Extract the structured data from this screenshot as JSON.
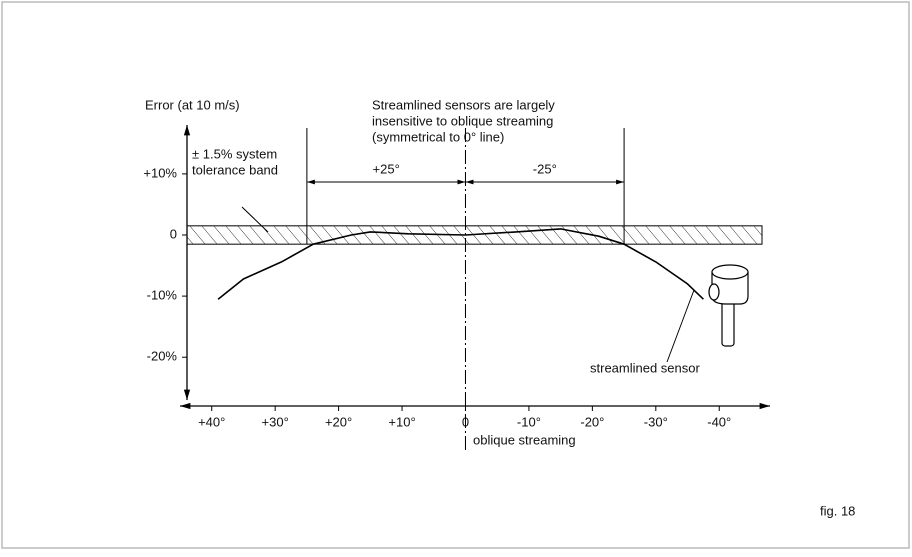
{
  "chart_data": {
    "type": "line",
    "y_label": "Error (at 10 m/s)",
    "x_label": "oblique streaming",
    "annotation": [
      "Streamlined sensors are largely",
      "insensitive to oblique streaming",
      "(symmetrical to 0° line)"
    ],
    "band": {
      "label": [
        "± 1.5% system",
        "tolerance band"
      ],
      "low": -1.5,
      "high": 1.5
    },
    "dimensions": [
      {
        "from": 25,
        "to": 0,
        "label": "+25°"
      },
      {
        "from": 0,
        "to": -25,
        "label": "-25°"
      }
    ],
    "figure_label": "fig. 18",
    "x": [
      39,
      35,
      29,
      24,
      18,
      15,
      9,
      0,
      -8,
      -15,
      -21,
      -25,
      -30,
      -35,
      -37.5
    ],
    "series": [
      {
        "name": "streamlined sensor",
        "color": "#000000",
        "values": [
          -10.5,
          -7.2,
          -4.4,
          -1.5,
          0,
          0.5,
          0.2,
          0,
          0.5,
          1,
          -0.2,
          -1.5,
          -4.4,
          -8,
          -10.5
        ]
      }
    ],
    "xlim": [
      45,
      -48
    ],
    "xticks": [
      {
        "value": 40,
        "label": "+40°"
      },
      {
        "value": 30,
        "label": "+30°"
      },
      {
        "value": 20,
        "label": "+20°"
      },
      {
        "value": 10,
        "label": "+10°"
      },
      0,
      {
        "value": -10,
        "label": "-10°"
      },
      {
        "value": -20,
        "label": "-20°"
      },
      {
        "value": -30,
        "label": "-30°"
      },
      {
        "value": -40,
        "label": "-40°"
      }
    ],
    "ylim": [
      -27,
      18
    ],
    "yticks": [
      {
        "value": 10,
        "label": "+10%"
      },
      0,
      {
        "value": -10,
        "label": "-10%"
      },
      {
        "value": -20,
        "label": "-20%"
      }
    ]
  }
}
